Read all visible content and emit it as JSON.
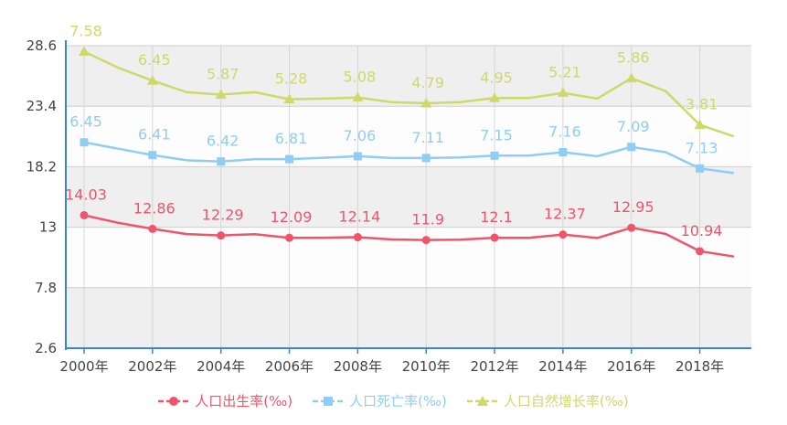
{
  "chart_data": {
    "type": "line",
    "title": "",
    "xlabel": "",
    "ylabel": "",
    "x_start": 2000,
    "x_end": 2019,
    "x_ticks": [
      "2000年",
      "2002年",
      "2004年",
      "2006年",
      "2008年",
      "2010年",
      "2012年",
      "2014年",
      "2016年",
      "2018年"
    ],
    "y_ticks": [
      "2.6",
      "7.8",
      "13",
      "18.2",
      "23.4",
      "28.6"
    ],
    "ylim": [
      2.6,
      28.6
    ],
    "grid": true,
    "legend_position": "bottom",
    "series": [
      {
        "name": "人口出生率(‰)",
        "color": "#f0546a",
        "marker": "circle",
        "x": [
          2000,
          2001,
          2002,
          2003,
          2004,
          2005,
          2006,
          2007,
          2008,
          2009,
          2010,
          2011,
          2012,
          2013,
          2014,
          2015,
          2016,
          2017,
          2018,
          2019
        ],
        "values": [
          14.03,
          13.38,
          12.86,
          12.41,
          12.29,
          12.4,
          12.09,
          12.1,
          12.14,
          11.95,
          11.9,
          11.93,
          12.1,
          12.08,
          12.37,
          12.07,
          12.95,
          12.43,
          10.94,
          10.48
        ],
        "labeled": [
          {
            "x": 2000,
            "label": "14.03"
          },
          {
            "x": 2002,
            "label": "12.86"
          },
          {
            "x": 2004,
            "label": "12.29"
          },
          {
            "x": 2006,
            "label": "12.09"
          },
          {
            "x": 2008,
            "label": "12.14"
          },
          {
            "x": 2010,
            "label": "11.9"
          },
          {
            "x": 2012,
            "label": "12.1"
          },
          {
            "x": 2014,
            "label": "12.37"
          },
          {
            "x": 2016,
            "label": "12.95"
          },
          {
            "x": 2018,
            "label": "10.94"
          }
        ]
      },
      {
        "name": "人口死亡率(‰)",
        "color": "#8fcdf4",
        "marker": "square",
        "x": [
          2000,
          2001,
          2002,
          2003,
          2004,
          2005,
          2006,
          2007,
          2008,
          2009,
          2010,
          2011,
          2012,
          2013,
          2014,
          2015,
          2016,
          2017,
          2018,
          2019
        ],
        "values": [
          20.3,
          19.75,
          19.2,
          18.75,
          18.65,
          18.85,
          18.85,
          18.97,
          19.1,
          18.95,
          18.95,
          19.0,
          19.15,
          19.15,
          19.45,
          19.1,
          19.9,
          19.45,
          18.05,
          17.65
        ],
        "labeled": [
          {
            "x": 2000,
            "label": "6.45"
          },
          {
            "x": 2002,
            "label": "6.41"
          },
          {
            "x": 2004,
            "label": "6.42"
          },
          {
            "x": 2006,
            "label": "6.81"
          },
          {
            "x": 2008,
            "label": "7.06"
          },
          {
            "x": 2010,
            "label": "7.11"
          },
          {
            "x": 2012,
            "label": "7.15"
          },
          {
            "x": 2014,
            "label": "7.16"
          },
          {
            "x": 2016,
            "label": "7.09"
          },
          {
            "x": 2018,
            "label": "7.13"
          }
        ]
      },
      {
        "name": "人口自然增长率(‰)",
        "color": "#cfd86a",
        "marker": "triangle",
        "x": [
          2000,
          2001,
          2002,
          2003,
          2004,
          2005,
          2006,
          2007,
          2008,
          2009,
          2010,
          2011,
          2012,
          2013,
          2014,
          2015,
          2016,
          2017,
          2018,
          2019
        ],
        "values": [
          28.1,
          26.7,
          25.6,
          24.6,
          24.4,
          24.6,
          24.0,
          24.05,
          24.15,
          23.75,
          23.65,
          23.75,
          24.1,
          24.1,
          24.55,
          24.05,
          25.8,
          24.7,
          21.8,
          20.8
        ],
        "labeled": [
          {
            "x": 2000,
            "label": "7.58"
          },
          {
            "x": 2002,
            "label": "6.45"
          },
          {
            "x": 2004,
            "label": "5.87"
          },
          {
            "x": 2006,
            "label": "5.28"
          },
          {
            "x": 2008,
            "label": "5.08"
          },
          {
            "x": 2010,
            "label": "4.79"
          },
          {
            "x": 2012,
            "label": "4.95"
          },
          {
            "x": 2014,
            "label": "5.21"
          },
          {
            "x": 2016,
            "label": "5.86"
          },
          {
            "x": 2018,
            "label": "3.81"
          }
        ]
      }
    ]
  }
}
